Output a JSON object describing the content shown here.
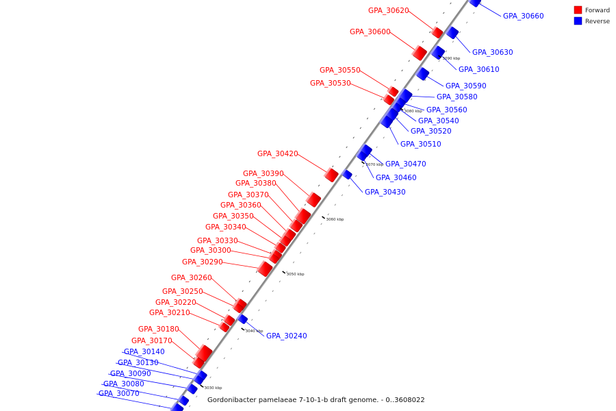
{
  "caption": "Gordonibacter pamelaeae 7-10-1-b draft genome. - 0..3608022",
  "legend": [
    {
      "label": "Forward",
      "color": "#ff0000"
    },
    {
      "label": "Reverse",
      "color": "#0000ff"
    }
  ],
  "colors": {
    "forward": "#ff0000",
    "reverse": "#0000ff",
    "backbone": "#888888"
  },
  "ticks": [
    "3030 kbp",
    "3040 kbp",
    "3050 kbp",
    "3060 kbp",
    "3070 kbp",
    "3080 kbp",
    "3090 kbp"
  ],
  "forward_genes": [
    "GPA_30620",
    "GPA_30600",
    "GPA_30550",
    "GPA_30530",
    "GPA_30420",
    "GPA_30390",
    "GPA_30380",
    "GPA_30370",
    "GPA_30360",
    "GPA_30350",
    "GPA_30340",
    "GPA_30330",
    "GPA_30300",
    "GPA_30290",
    "GPA_30260",
    "GPA_30250",
    "GPA_30220",
    "GPA_30210",
    "GPA_30180",
    "GPA_30170"
  ],
  "reverse_genes": [
    "GPA_30660",
    "GPA_30630",
    "GPA_30610",
    "GPA_30590",
    "GPA_30580",
    "GPA_30560",
    "GPA_30540",
    "GPA_30520",
    "GPA_30510",
    "GPA_30470",
    "GPA_30460",
    "GPA_30430",
    "GPA_30240",
    "GPA_30140",
    "GPA_30130",
    "GPA_30090",
    "GPA_30080",
    "GPA_30070"
  ]
}
